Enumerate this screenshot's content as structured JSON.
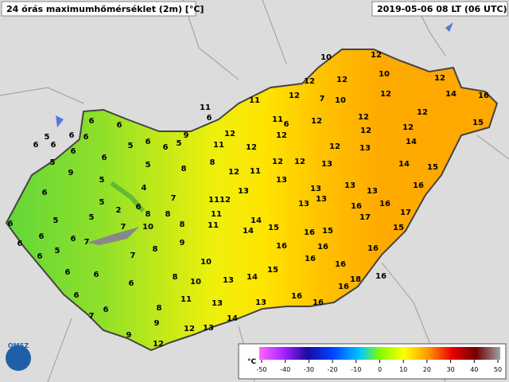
{
  "header": {
    "title": "24 órás maximumhőmérséklet (2m) [°C]",
    "timestamp": "2019-05-06 08 LT (06 UTC)",
    "logo": "OMSZ"
  },
  "stations": [
    10,
    12,
    10,
    12,
    12,
    12,
    7,
    10,
    12,
    14,
    16,
    15,
    11,
    11,
    12,
    11,
    6,
    12,
    12,
    12,
    12,
    12,
    12,
    6,
    9,
    5,
    11,
    12,
    12,
    8,
    12,
    11,
    12,
    12,
    12,
    13,
    14,
    15,
    14,
    13,
    13,
    13,
    12,
    13,
    13,
    13,
    13,
    16,
    16,
    16,
    17,
    17,
    13,
    11,
    11,
    11,
    14,
    14,
    15,
    16,
    15,
    16,
    16,
    16,
    16,
    15,
    16,
    15,
    14,
    13,
    10,
    10,
    11,
    13,
    13,
    16,
    16,
    16,
    18,
    16,
    14,
    13,
    12,
    12,
    6,
    6,
    5,
    6,
    6,
    5,
    6,
    6,
    6,
    6,
    5,
    6,
    9,
    5,
    6,
    5,
    4,
    8,
    7,
    8,
    8,
    2,
    6,
    5,
    5,
    5,
    6,
    6,
    6,
    6,
    7,
    7,
    10,
    8,
    9,
    7,
    8,
    5,
    6,
    6,
    6,
    6,
    8,
    6,
    6,
    8,
    7,
    9,
    9,
    6
  ],
  "legend": {
    "unit": "°C",
    "ticks": [
      -50,
      -40,
      -30,
      -20,
      -10,
      0,
      10,
      20,
      30,
      40,
      50
    ]
  }
}
